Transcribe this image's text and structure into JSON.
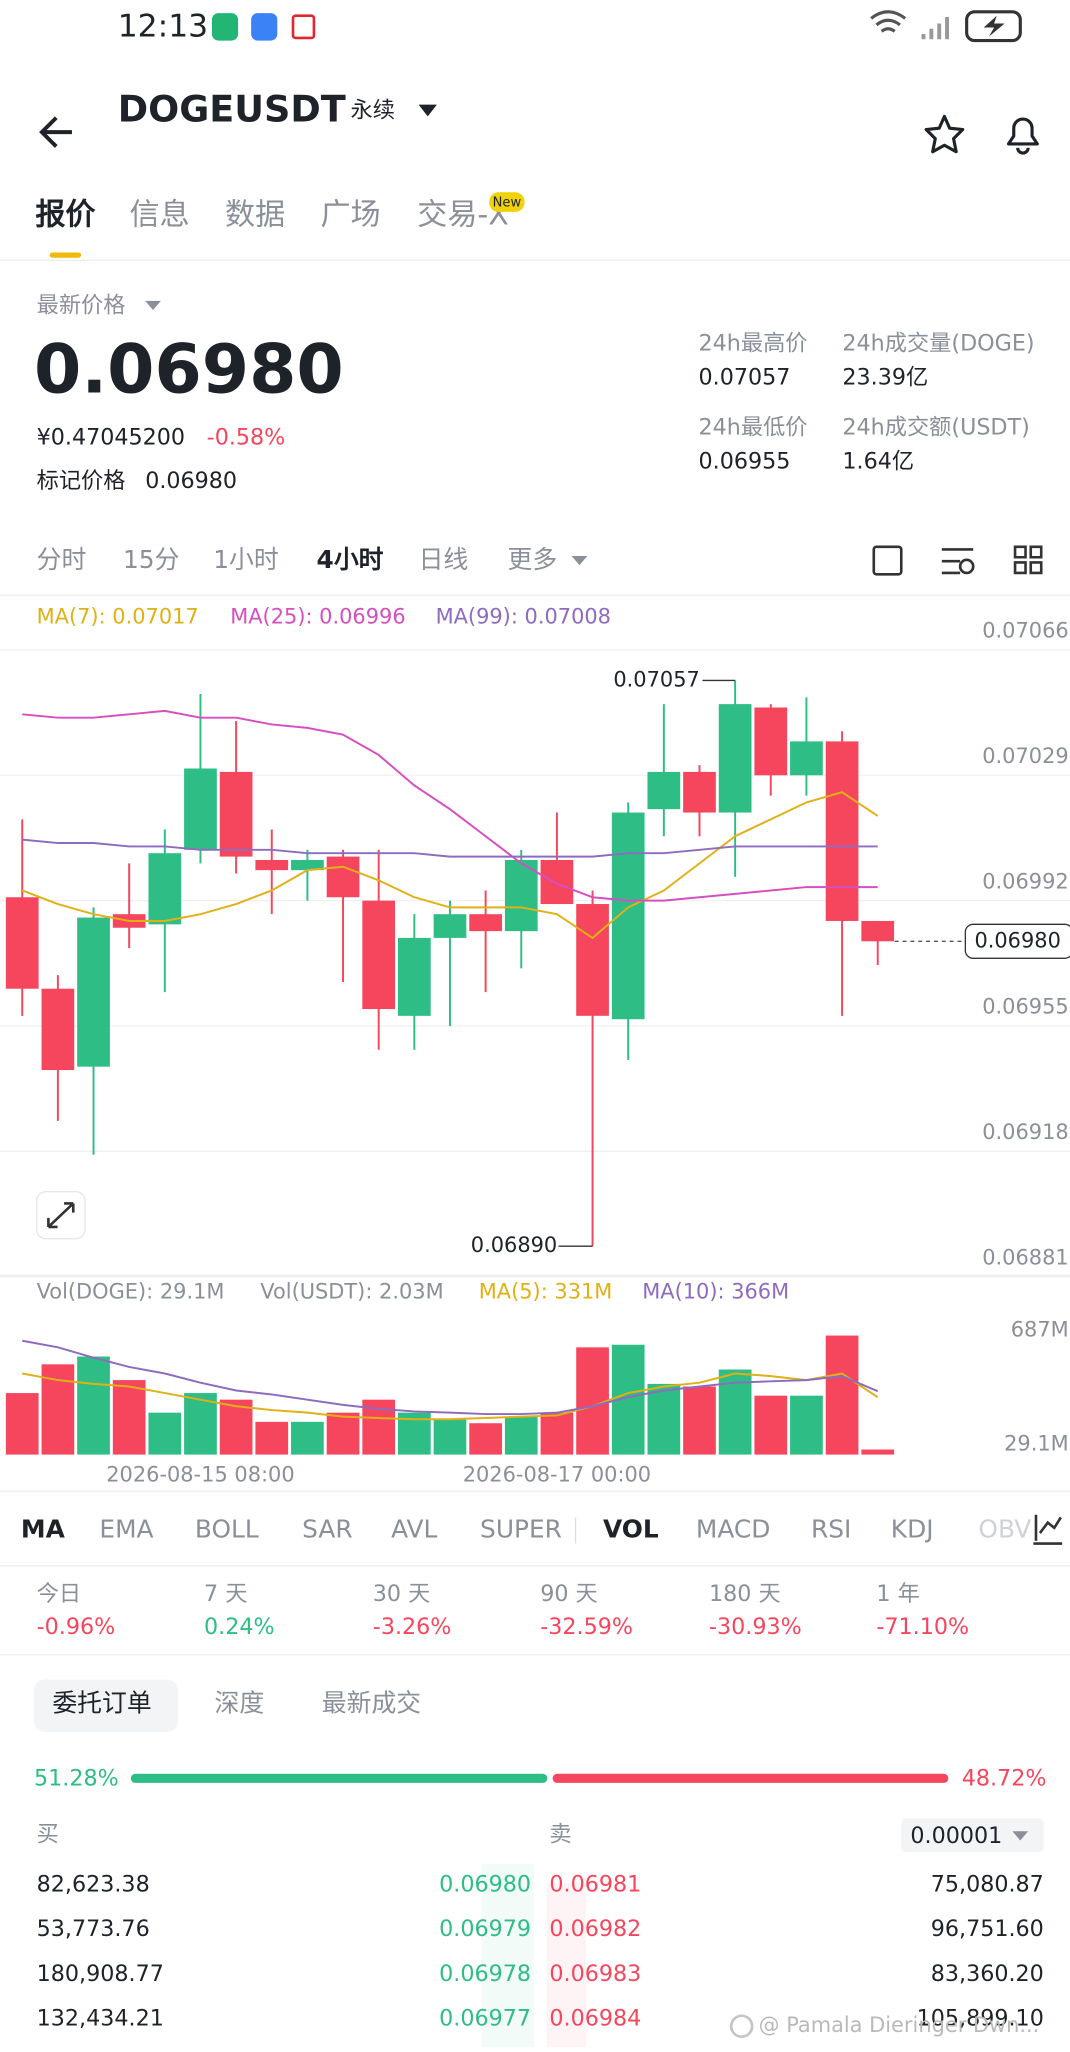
{
  "status_bar": {
    "time": "12:13"
  },
  "header": {
    "symbol": "DOGEUSDT",
    "contract": "永续"
  },
  "tabs": {
    "items": [
      "报价",
      "信息",
      "数据",
      "广场",
      "交易-X"
    ],
    "badge": "New"
  },
  "price": {
    "label": "最新价格",
    "last": "0.06980",
    "cny": "¥0.47045200",
    "change": "-0.58%",
    "mark_label": "标记价格",
    "mark": "0.06980"
  },
  "stats": [
    {
      "label": "24h最高价",
      "value": "0.07057"
    },
    {
      "label": "24h成交量(DOGE)",
      "value": "23.39亿"
    },
    {
      "label": "24h最低价",
      "value": "0.06955"
    },
    {
      "label": "24h成交额(USDT)",
      "value": "1.64亿"
    }
  ],
  "intervals": [
    "分时",
    "15分",
    "1小时",
    "4小时",
    "日线",
    "更多"
  ],
  "chart_data": [
    {
      "type": "candlestick",
      "up_color": "#2ebd85",
      "down_color": "#f6465d",
      "open": [
        0.06993,
        0.06966,
        0.06943,
        0.06988,
        0.06985,
        0.07007,
        0.0703,
        0.07004,
        0.07001,
        0.07005,
        0.06992,
        0.06958,
        0.06981,
        0.06988,
        0.06983,
        0.07004,
        0.06991,
        0.06957,
        0.07019,
        0.0703,
        0.07018,
        0.07049,
        0.07029,
        0.07039,
        0.06986
      ],
      "high": [
        0.07016,
        0.0697,
        0.0699,
        0.07003,
        0.07013,
        0.07053,
        0.07045,
        0.07013,
        0.07007,
        0.07007,
        0.07007,
        0.06988,
        0.06992,
        0.06995,
        0.07007,
        0.07018,
        0.06995,
        0.07021,
        0.0705,
        0.07032,
        0.07057,
        0.0705,
        0.07052,
        0.07042,
        0.06986
      ],
      "low": [
        0.06958,
        0.06927,
        0.06917,
        0.06978,
        0.06965,
        0.07003,
        0.07,
        0.06988,
        0.06992,
        0.06968,
        0.06948,
        0.06948,
        0.06955,
        0.06965,
        0.06972,
        0.06991,
        0.0689,
        0.06945,
        0.07011,
        0.07011,
        0.06999,
        0.07023,
        0.07023,
        0.06958,
        0.06973
      ],
      "close": [
        0.06966,
        0.06942,
        0.06987,
        0.06984,
        0.07006,
        0.07031,
        0.07005,
        0.07001,
        0.07004,
        0.06993,
        0.0696,
        0.06981,
        0.06988,
        0.06983,
        0.07004,
        0.06991,
        0.06958,
        0.07018,
        0.0703,
        0.07018,
        0.0705,
        0.07029,
        0.07039,
        0.06986,
        0.0698
      ],
      "series": [
        {
          "name": "MA(7): 0.07017",
          "color": "#e0b116",
          "values": [
            0.06995,
            0.06991,
            0.06988,
            0.06986,
            0.06986,
            0.06988,
            0.06991,
            0.06995,
            0.07001,
            0.07002,
            0.06998,
            0.06993,
            0.0699,
            0.0699,
            0.0699,
            0.06988,
            0.06981,
            0.0699,
            0.06995,
            0.07003,
            0.07011,
            0.07016,
            0.07021,
            0.07024,
            0.07017
          ]
        },
        {
          "name": "MA(25): 0.06996",
          "color": "#d64fbf",
          "values": [
            0.07047,
            0.07046,
            0.07046,
            0.07047,
            0.07048,
            0.07046,
            0.07046,
            0.07044,
            0.07043,
            0.07041,
            0.07035,
            0.07026,
            0.07019,
            0.07011,
            0.07003,
            0.06997,
            0.06993,
            0.06992,
            0.06992,
            0.06993,
            0.06994,
            0.06995,
            0.06996,
            0.06996,
            0.06996
          ]
        },
        {
          "name": "MA(99): 0.07008",
          "color": "#8e6bbf",
          "values": [
            0.0701,
            0.07009,
            0.07009,
            0.07008,
            0.07008,
            0.07007,
            0.07007,
            0.07007,
            0.07006,
            0.07006,
            0.07006,
            0.07006,
            0.07005,
            0.07005,
            0.07005,
            0.07005,
            0.07005,
            0.07006,
            0.07006,
            0.07007,
            0.07008,
            0.07008,
            0.07008,
            0.07008,
            0.07008
          ]
        }
      ],
      "high_label": 0.07057,
      "low_label": {
        "value": 0.0689,
        "label": "0.06890"
      },
      "last_price": {
        "value": 0.0698,
        "label": "0.06980"
      },
      "ylim": [
        0.06881,
        0.07081
      ],
      "yticks": [
        0.06881,
        0.06918,
        0.06955,
        0.06992,
        0.07029,
        0.07066
      ],
      "grid": true
    },
    {
      "type": "bar",
      "labels": [
        "Vol(DOGE): 29.1M",
        "Vol(USDT): 2.03M"
      ],
      "categories": [
        null,
        null,
        null,
        null,
        null,
        "2026-08-15 08:00",
        null,
        null,
        null,
        null,
        null,
        null,
        null,
        null,
        null,
        "2026-08-17 00:00",
        null,
        null,
        null,
        null,
        null,
        null,
        null,
        null,
        null
      ],
      "values": [
        355,
        521,
        566,
        430,
        242,
        355,
        317,
        189,
        189,
        242,
        317,
        242,
        204,
        181,
        219,
        242,
        619,
        634,
        408,
        393,
        491,
        340,
        340,
        687,
        29.1
      ],
      "series": [
        {
          "name": "MA(5): 331M",
          "color": "#e0b116",
          "values": [
            468,
            430,
            408,
            393,
            355,
            317,
            279,
            257,
            242,
            219,
            211,
            204,
            204,
            211,
            219,
            226,
            279,
            355,
            393,
            415,
            468,
            453,
            430,
            468,
            331
          ]
        },
        {
          "name": "MA(10): 366M",
          "color": "#8e6bbf",
          "values": [
            657,
            619,
            559,
            506,
            468,
            415,
            370,
            347,
            317,
            287,
            264,
            249,
            242,
            234,
            234,
            242,
            279,
            332,
            370,
            393,
            415,
            423,
            430,
            453,
            366
          ]
        }
      ],
      "ylim": [
        0,
        687
      ],
      "yticks": [
        {
          "value": 687,
          "label": "687M"
        },
        {
          "value": 29.1,
          "label": "29.1M"
        }
      ]
    }
  ],
  "indicators": [
    "MA",
    "EMA",
    "BOLL",
    "SAR",
    "AVL",
    "SUPER",
    "VOL",
    "MACD",
    "RSI",
    "KDJ",
    "OBV"
  ],
  "performance": [
    {
      "label": "今日",
      "value": "-0.96%"
    },
    {
      "label": "7 天",
      "value": "0.24%"
    },
    {
      "label": "30 天",
      "value": "-3.26%"
    },
    {
      "label": "90 天",
      "value": "-32.59%"
    },
    {
      "label": "180 天",
      "value": "-30.93%"
    },
    {
      "label": "1 年",
      "value": "-71.10%"
    }
  ],
  "order_tabs": [
    "委托订单",
    "深度",
    "最新成交"
  ],
  "ratio": {
    "buy": {
      "value": 51.28,
      "label": "51.28%"
    },
    "sell": {
      "value": 48.72,
      "label": "48.72%"
    }
  },
  "book": {
    "buy_label": "买",
    "sell_label": "卖",
    "precision": "0.00001",
    "rows": [
      [
        "82,623.38",
        "0.06980",
        "0.06981",
        "75,080.87"
      ],
      [
        "53,773.76",
        "0.06979",
        "0.06982",
        "96,751.60"
      ],
      [
        "180,908.77",
        "0.06978",
        "0.06983",
        "83,360.20"
      ],
      [
        "132,434.21",
        "0.06977",
        "0.06984",
        "105,899.10"
      ]
    ]
  },
  "watermark": "@ Pamala Dieringer Dwn..."
}
